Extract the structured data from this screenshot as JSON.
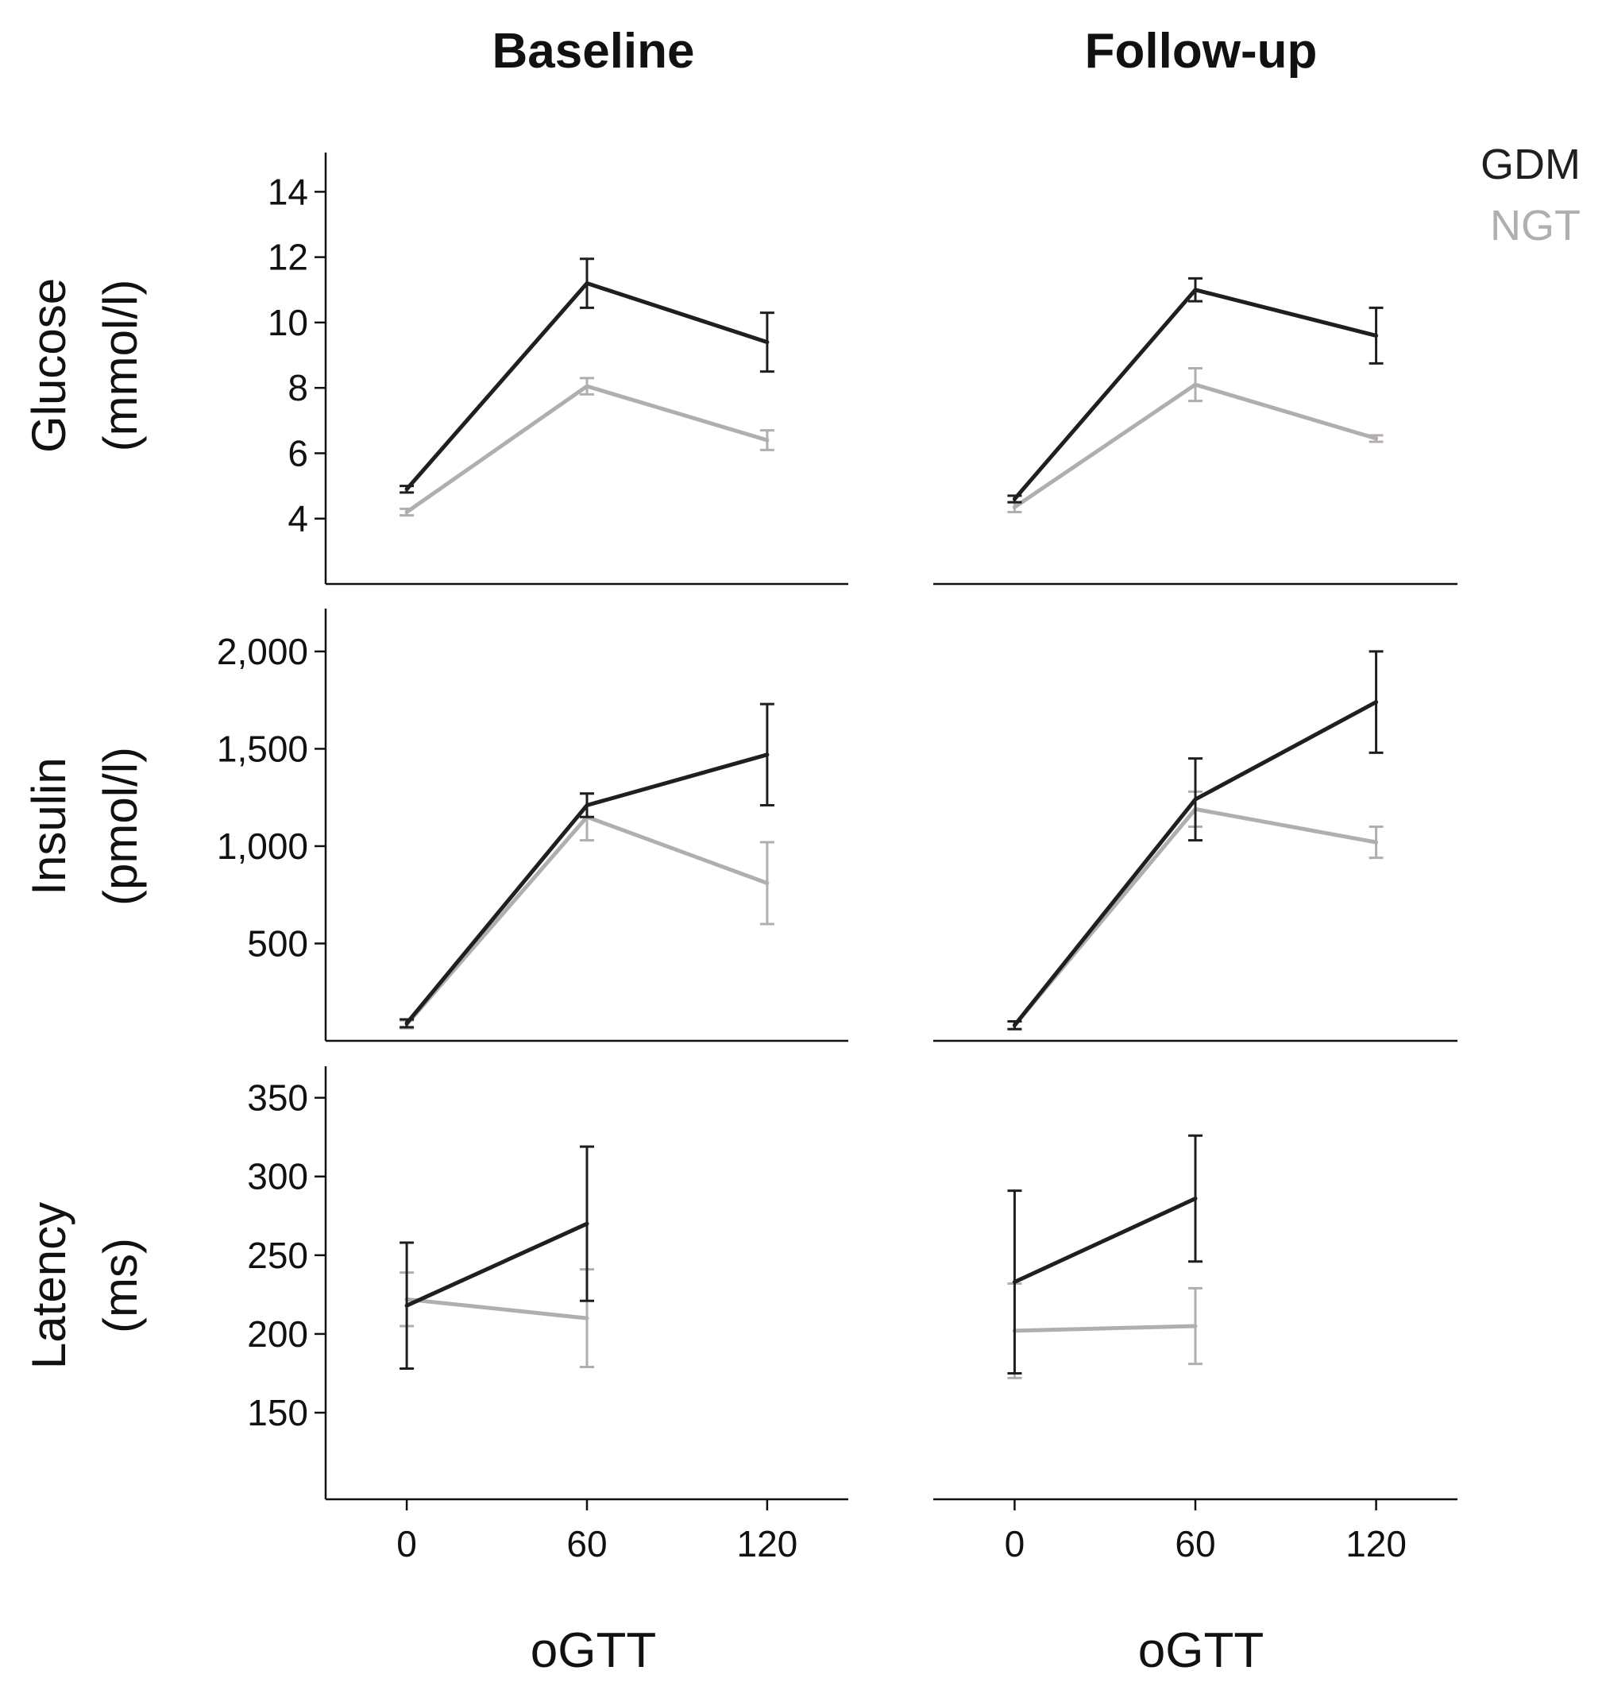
{
  "figure": {
    "columns": [
      "Baseline",
      "Follow-up"
    ],
    "rows": [
      {
        "label_line1": "Glucose",
        "label_line2": "(mmol/l)"
      },
      {
        "label_line1": "Insulin",
        "label_line2": "(pmol/l)"
      },
      {
        "label_line1": "Latency",
        "label_line2": "(ms)"
      }
    ],
    "xlabel": "oGTT",
    "legend": [
      {
        "label": "GDM",
        "color": "#1f1f1f"
      },
      {
        "label": "NGT",
        "color": "#b3aeae"
      }
    ]
  },
  "chart_data": [
    {
      "type": "line",
      "column": "Baseline",
      "row": "Glucose",
      "xticks": [
        0,
        60,
        120
      ],
      "xlim": [
        -27,
        147
      ],
      "ylim": [
        2,
        15.2
      ],
      "yticks": [
        4,
        6,
        8,
        10,
        12,
        14
      ],
      "ytick_labels": [
        "4",
        "6",
        "8",
        "10",
        "12",
        "14"
      ],
      "series": [
        {
          "name": "GDM",
          "x": [
            0,
            60,
            120
          ],
          "y": [
            4.9,
            11.2,
            9.4
          ],
          "err": [
            0.1,
            0.75,
            0.9
          ]
        },
        {
          "name": "NGT",
          "x": [
            0,
            60,
            120
          ],
          "y": [
            4.2,
            8.05,
            6.4
          ],
          "err": [
            0.1,
            0.25,
            0.3
          ]
        }
      ]
    },
    {
      "type": "line",
      "column": "Follow-up",
      "row": "Glucose",
      "xticks": [
        0,
        60,
        120
      ],
      "xlim": [
        -27,
        147
      ],
      "ylim": [
        2,
        15.2
      ],
      "series": [
        {
          "name": "GDM",
          "x": [
            0,
            60,
            120
          ],
          "y": [
            4.6,
            11.0,
            9.6
          ],
          "err": [
            0.1,
            0.35,
            0.85
          ]
        },
        {
          "name": "NGT",
          "x": [
            0,
            60,
            120
          ],
          "y": [
            4.35,
            8.1,
            6.45
          ],
          "err": [
            0.15,
            0.5,
            0.1
          ]
        }
      ]
    },
    {
      "type": "line",
      "column": "Baseline",
      "row": "Insulin",
      "xticks": [
        0,
        60,
        120
      ],
      "xlim": [
        -27,
        147
      ],
      "ylim": [
        0,
        2220
      ],
      "yticks": [
        500,
        1000,
        1500,
        2000
      ],
      "ytick_labels": [
        "500",
        "1,000",
        "1,500",
        "2,000"
      ],
      "series": [
        {
          "name": "GDM",
          "x": [
            0,
            60,
            120
          ],
          "y": [
            90,
            1210,
            1470
          ],
          "err": [
            20,
            60,
            260
          ]
        },
        {
          "name": "NGT",
          "x": [
            0,
            60,
            120
          ],
          "y": [
            85,
            1150,
            810
          ],
          "err": [
            20,
            120,
            210
          ]
        }
      ]
    },
    {
      "type": "line",
      "column": "Follow-up",
      "row": "Insulin",
      "xticks": [
        0,
        60,
        120
      ],
      "xlim": [
        -27,
        147
      ],
      "ylim": [
        0,
        2220
      ],
      "series": [
        {
          "name": "GDM",
          "x": [
            0,
            60,
            120
          ],
          "y": [
            80,
            1240,
            1740
          ],
          "err": [
            20,
            210,
            260
          ]
        },
        {
          "name": "NGT",
          "x": [
            0,
            60,
            120
          ],
          "y": [
            80,
            1190,
            1020
          ],
          "err": [
            20,
            90,
            80
          ]
        }
      ]
    },
    {
      "type": "line",
      "column": "Baseline",
      "row": "Latency",
      "xticks": [
        0,
        60,
        120
      ],
      "xtick_labels": [
        "0",
        "60",
        "120"
      ],
      "xlim": [
        -27,
        147
      ],
      "ylim": [
        95,
        370
      ],
      "yticks": [
        150,
        200,
        250,
        300,
        350
      ],
      "ytick_labels": [
        "150",
        "200",
        "250",
        "300",
        "350"
      ],
      "series": [
        {
          "name": "GDM",
          "x": [
            0,
            60
          ],
          "y": [
            218,
            270
          ],
          "err": [
            40,
            49
          ]
        },
        {
          "name": "NGT",
          "x": [
            0,
            60
          ],
          "y": [
            222,
            210
          ],
          "err": [
            17,
            31
          ]
        }
      ]
    },
    {
      "type": "line",
      "column": "Follow-up",
      "row": "Latency",
      "xticks": [
        0,
        60,
        120
      ],
      "xtick_labels": [
        "0",
        "60",
        "120"
      ],
      "xlim": [
        -27,
        147
      ],
      "ylim": [
        95,
        370
      ],
      "series": [
        {
          "name": "GDM",
          "x": [
            0,
            60
          ],
          "y": [
            233,
            286
          ],
          "err": [
            58,
            40
          ]
        },
        {
          "name": "NGT",
          "x": [
            0,
            60
          ],
          "y": [
            202,
            205
          ],
          "err": [
            30,
            24
          ]
        }
      ]
    }
  ]
}
